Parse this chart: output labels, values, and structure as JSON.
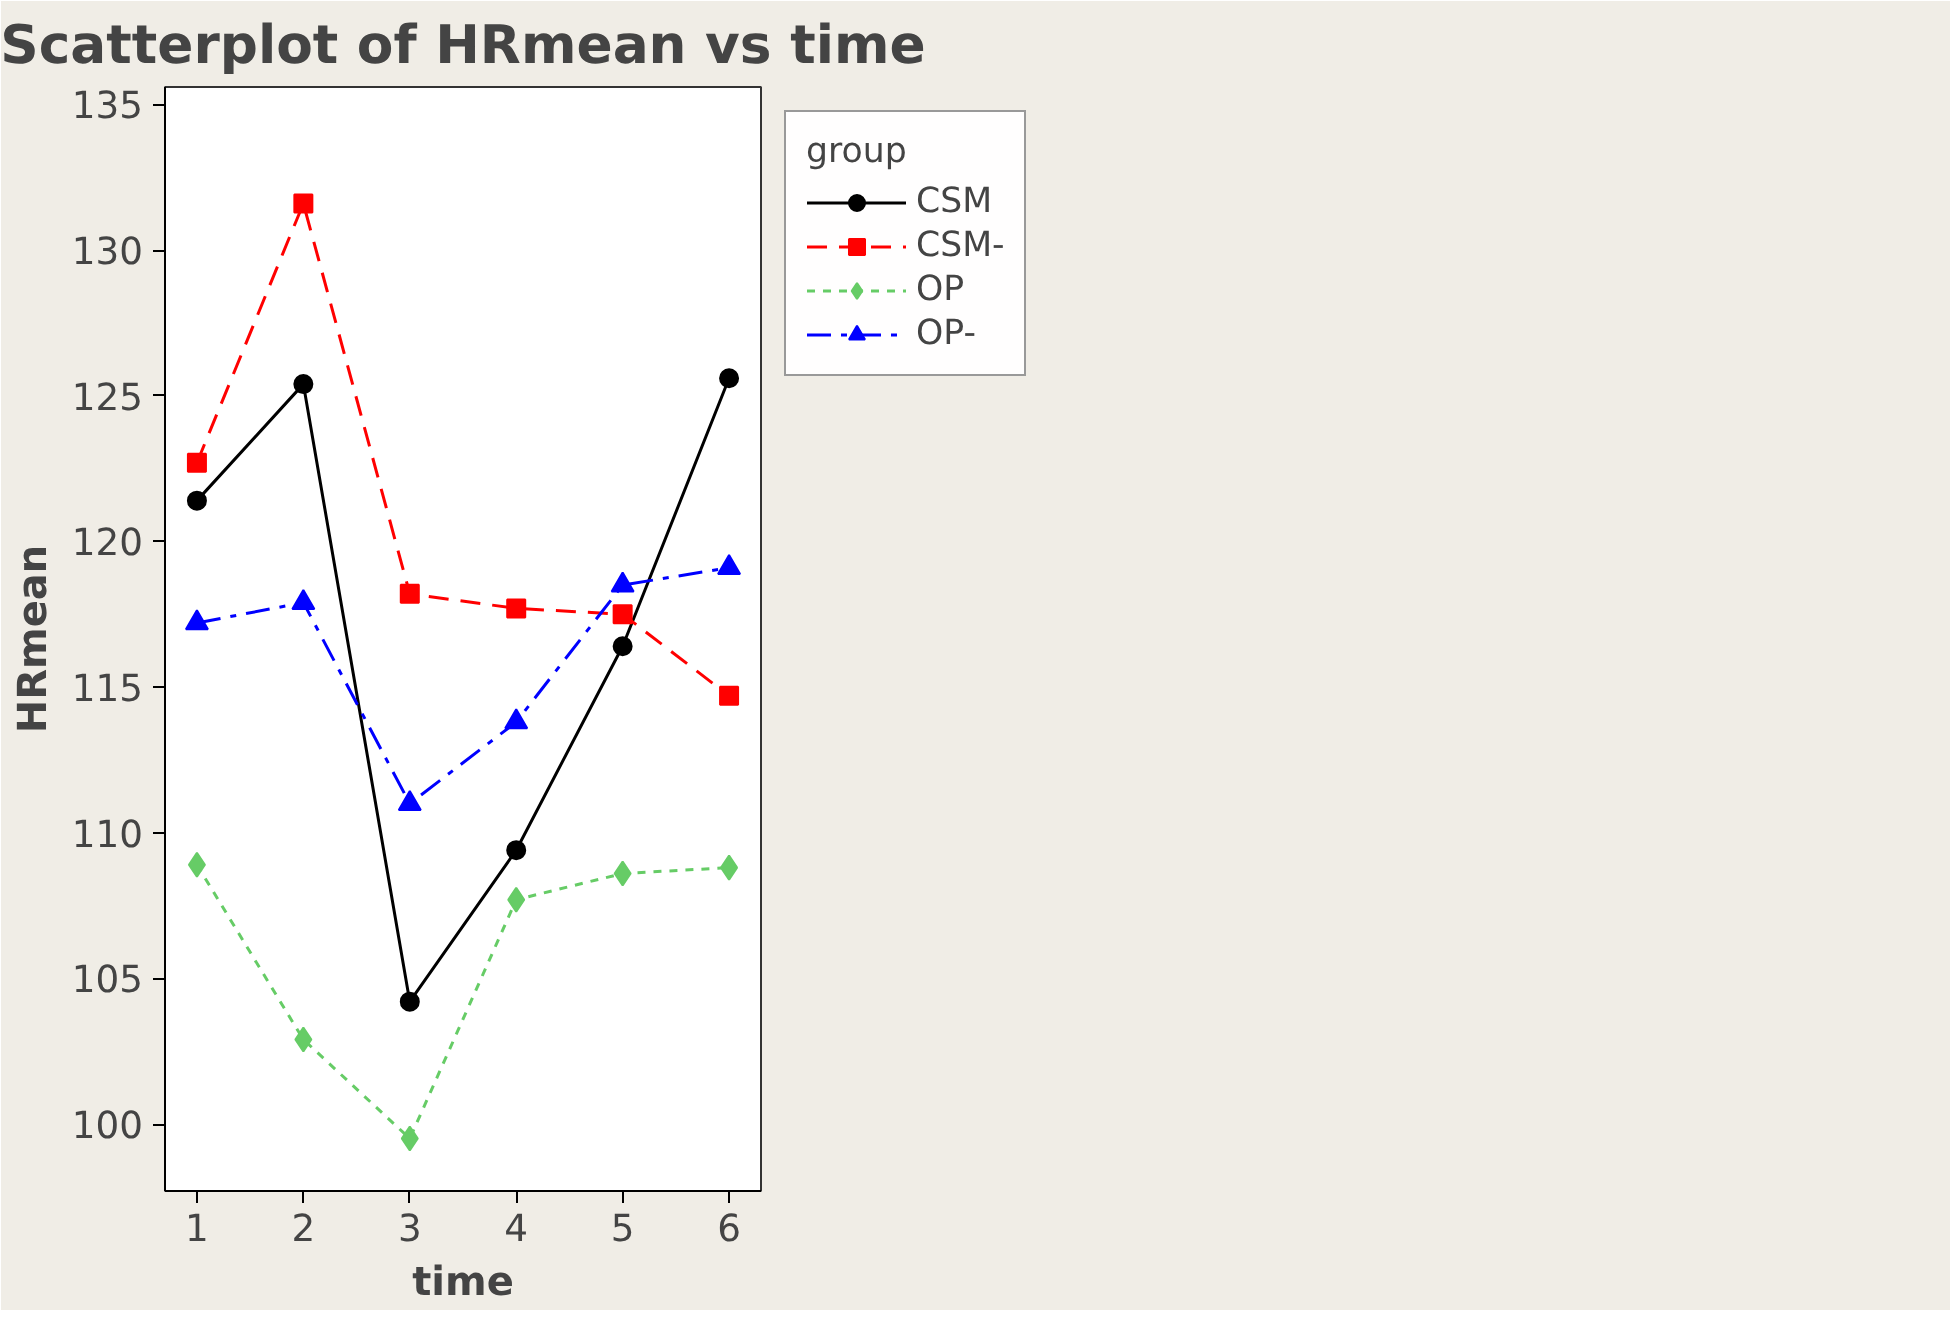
{
  "chart_data": {
    "type": "line",
    "title": "Scatterplot of HRmean vs time",
    "xlabel": "time",
    "ylabel": "HRmean",
    "legend_title": "group",
    "x": [
      1,
      2,
      3,
      4,
      5,
      6
    ],
    "series": [
      {
        "name": "CSM",
        "color": "#000000",
        "marker": "circle",
        "line_style": "solid",
        "values": [
          121.4,
          125.4,
          104.2,
          109.4,
          116.4,
          125.6
        ]
      },
      {
        "name": "CSM-",
        "color": "#ff0000",
        "marker": "square",
        "line_style": "dashed",
        "values": [
          122.7,
          131.6,
          118.2,
          117.7,
          117.5,
          114.7
        ]
      },
      {
        "name": "OP",
        "color": "#66cc66",
        "marker": "diamond",
        "line_style": "dotted",
        "values": [
          108.9,
          102.9,
          99.5,
          107.7,
          108.6,
          108.8
        ]
      },
      {
        "name": "OP-",
        "color": "#0000ff",
        "marker": "triangle",
        "line_style": "dashdot",
        "values": [
          117.2,
          117.9,
          111.0,
          113.8,
          118.5,
          119.1
        ]
      }
    ],
    "xlim": [
      0.7,
      6.3
    ],
    "ylim": [
      97.7,
      135.6
    ],
    "xticks": [
      1,
      2,
      3,
      4,
      5,
      6
    ],
    "yticks": [
      100,
      105,
      110,
      115,
      120,
      125,
      130,
      135
    ],
    "grid": false,
    "legend": "top right"
  }
}
